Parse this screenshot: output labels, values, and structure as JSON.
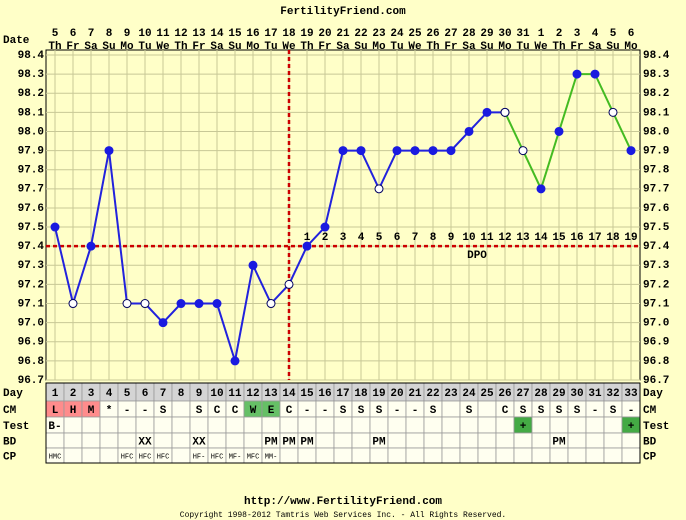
{
  "title": "FertilityFriend.com",
  "chart_data": {
    "type": "line",
    "date_label": "Date",
    "categories": [
      5,
      6,
      7,
      8,
      9,
      10,
      11,
      12,
      13,
      14,
      15,
      16,
      17,
      18,
      19,
      20,
      21,
      22,
      23,
      24,
      25,
      26,
      27,
      28,
      29,
      30,
      31,
      1,
      2,
      3,
      4,
      5,
      6
    ],
    "weekdays": [
      "Th",
      "Fr",
      "Sa",
      "Su",
      "Mo",
      "Tu",
      "We",
      "Th",
      "Fr",
      "Sa",
      "Su",
      "Mo",
      "Tu",
      "We",
      "Th",
      "Fr",
      "Sa",
      "Su",
      "Mo",
      "Tu",
      "We",
      "Th",
      "Fr",
      "Sa",
      "Su",
      "Mo",
      "Tu",
      "We",
      "Th",
      "Fr",
      "Sa",
      "Su",
      "Mo"
    ],
    "series": [
      {
        "color": "#2222dd",
        "values": [
          97.5,
          97.1,
          97.4,
          97.9,
          97.1,
          97.1,
          97.0,
          97.1,
          97.1,
          97.1,
          96.8,
          97.3,
          97.1,
          97.2,
          97.4,
          97.5,
          97.9,
          97.9,
          97.7,
          97.9,
          97.9,
          97.9,
          97.9,
          98.0,
          98.1,
          98.1,
          null,
          null,
          null,
          null,
          null,
          null,
          null
        ]
      },
      {
        "color": "#44bb22",
        "values": [
          null,
          null,
          null,
          null,
          null,
          null,
          null,
          null,
          null,
          null,
          null,
          null,
          null,
          null,
          null,
          null,
          null,
          null,
          null,
          null,
          null,
          null,
          null,
          null,
          null,
          98.1,
          97.9,
          97.7,
          98.0,
          98.3,
          98.3,
          98.1,
          97.9
        ]
      }
    ],
    "marker_color": "#1a1ae0",
    "hollow_days": [
      2,
      5,
      6,
      13,
      14,
      19,
      26,
      27,
      32
    ],
    "ylim": [
      96.7,
      98.4
    ],
    "yticks": [
      96.7,
      96.8,
      96.9,
      {
        "value": 97,
        "label": "97.0"
      },
      97.1,
      97.2,
      97.3,
      97.4,
      97.5,
      97.6,
      97.7,
      97.8,
      97.9,
      {
        "value": 98,
        "label": "98.0"
      },
      98.1,
      98.2,
      98.3,
      98.4
    ],
    "grid": true,
    "coverline": 97.4,
    "coverline_color": "#cc0000",
    "ovulation_day": 14,
    "dpo_label": "DPO",
    "dpo": [
      null,
      null,
      null,
      null,
      null,
      null,
      null,
      null,
      null,
      null,
      null,
      null,
      null,
      null,
      1,
      2,
      3,
      4,
      5,
      6,
      7,
      8,
      9,
      10,
      11,
      12,
      13,
      14,
      15,
      16,
      17,
      18,
      19
    ]
  },
  "table": {
    "rows": [
      {
        "label": "Day",
        "background": "#d4d4d4",
        "cells": [
          1,
          2,
          3,
          4,
          5,
          6,
          7,
          8,
          9,
          10,
          11,
          12,
          13,
          14,
          15,
          16,
          17,
          18,
          19,
          20,
          21,
          22,
          23,
          24,
          25,
          26,
          27,
          28,
          29,
          30,
          31,
          32,
          33
        ]
      },
      {
        "label": "CM",
        "background": "#fffff0",
        "cells": [
          "L",
          "H",
          "M",
          "*",
          "-",
          "-",
          "S",
          null,
          "S",
          "C",
          "C",
          "W",
          "E",
          "C",
          "-",
          "-",
          "S",
          "S",
          "S",
          "-",
          "-",
          "S",
          null,
          "S",
          null,
          "C",
          "S",
          "S",
          "S",
          "S",
          "-",
          "S",
          "-"
        ],
        "colors": [
          "#ff8c8c",
          "#ff8c8c",
          "#ff8c8c",
          null,
          null,
          null,
          null,
          null,
          null,
          null,
          null,
          "#66c066",
          "#66c066",
          null,
          null,
          null,
          null,
          null,
          null,
          null,
          null,
          null,
          null,
          null,
          null,
          null,
          null,
          null,
          null,
          null,
          null,
          null,
          null
        ]
      },
      {
        "label": "Test",
        "background": "#fffff0",
        "cells": [
          "B-",
          null,
          null,
          null,
          null,
          null,
          null,
          null,
          null,
          null,
          null,
          null,
          null,
          null,
          null,
          null,
          null,
          null,
          null,
          null,
          null,
          null,
          null,
          null,
          null,
          null,
          "+",
          null,
          null,
          null,
          null,
          null,
          "+"
        ],
        "colors": [
          null,
          null,
          null,
          null,
          null,
          null,
          null,
          null,
          null,
          null,
          null,
          null,
          null,
          null,
          null,
          null,
          null,
          null,
          null,
          null,
          null,
          null,
          null,
          null,
          null,
          null,
          "#44aa44",
          null,
          null,
          null,
          null,
          null,
          "#44aa44"
        ]
      },
      {
        "label": "BD",
        "background": "#fffff0",
        "cells": [
          null,
          null,
          null,
          null,
          null,
          "XX",
          null,
          null,
          "XX",
          null,
          null,
          null,
          "PM",
          "PM",
          "PM",
          null,
          null,
          null,
          "PM",
          null,
          null,
          null,
          null,
          null,
          null,
          null,
          null,
          null,
          "PM",
          null,
          null,
          null,
          null
        ]
      },
      {
        "label": "CP",
        "background": "#fffff0",
        "small": true,
        "cells": [
          "HMC",
          null,
          null,
          null,
          "HFC",
          "HFC",
          "HFC",
          null,
          "HF-",
          "HFC",
          "MF-",
          "MFC",
          "MM-",
          null,
          null,
          null,
          null,
          null,
          null,
          null,
          null,
          null,
          null,
          null,
          null,
          null,
          null,
          null,
          null,
          null,
          null,
          null,
          null
        ]
      }
    ]
  },
  "footer": {
    "url": "http://www.FertilityFriend.com",
    "copyright": "Copyright 1998-2012 Tamtris Web Services Inc. - All Rights Reserved."
  }
}
